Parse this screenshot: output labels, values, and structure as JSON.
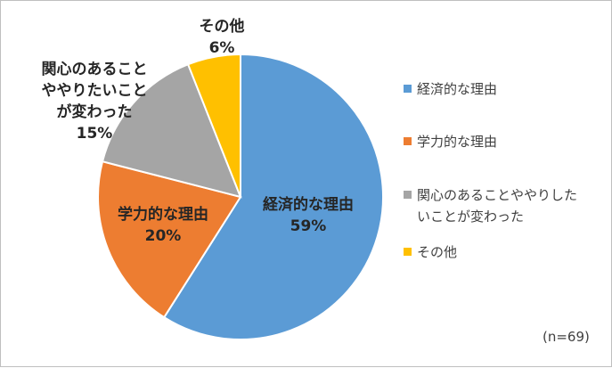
{
  "chart_data": {
    "type": "pie",
    "categories": [
      "経済的な理由",
      "学力的な理由",
      "関心のあることややりたいことが変わった",
      "その他"
    ],
    "values": [
      59,
      20,
      15,
      6
    ],
    "colors": [
      "#5b9bd5",
      "#ed7d31",
      "#a5a5a5",
      "#ffc000"
    ],
    "slice_labels": [
      {
        "lines": [
          "経済的な理由"
        ],
        "percent": "59%"
      },
      {
        "lines": [
          "学力的な理由"
        ],
        "percent": "20%"
      },
      {
        "lines": [
          "関心のあること",
          "ややりたいこと",
          "が変わった"
        ],
        "percent": "15%"
      },
      {
        "lines": [
          "その他"
        ],
        "percent": "6%"
      }
    ],
    "legend": {
      "position": "right",
      "entries": [
        {
          "lines": [
            "経済的な理由"
          ]
        },
        {
          "lines": [
            "学力的な理由"
          ]
        },
        {
          "lines": [
            "関心のあることややりした",
            "いことが変わった"
          ]
        },
        {
          "lines": [
            "その他"
          ]
        }
      ]
    },
    "note": "(n=69)"
  }
}
